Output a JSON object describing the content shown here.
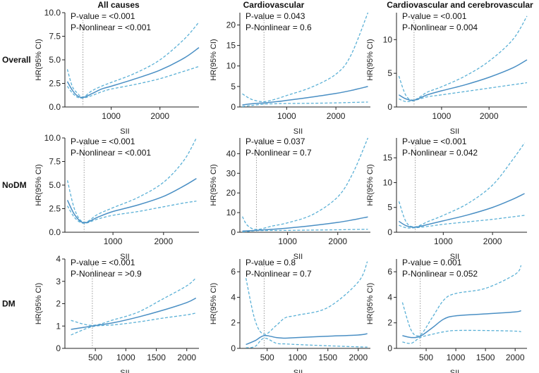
{
  "figure": {
    "column_titles": [
      "All causes",
      "Cardiovascular",
      "Cardiovascular and cerebrovascular"
    ],
    "row_labels": [
      "Overall",
      "NoDM",
      "DM"
    ],
    "colors": {
      "line": "#4a8fc4",
      "ci": "#5ab0d6",
      "ref": "#9a9a9a",
      "axis": "#222222"
    }
  },
  "chart_data": [
    {
      "type": "line",
      "row": "Overall",
      "column": "All causes",
      "xlabel": "SII",
      "ylabel": "HR(95% CI)",
      "xlim": [
        50,
        2800
      ],
      "ylim": [
        0,
        10
      ],
      "xticks": [
        1000,
        2000
      ],
      "yticks": [
        0.0,
        2.5,
        5.0,
        7.5,
        10.0
      ],
      "ytick_labels": [
        "0.0",
        "2.5",
        "5.0",
        "7.5",
        "10.0"
      ],
      "ref_x": 420,
      "annotations": [
        "P-value = <0.001",
        "P-Nonlinear = <0.001"
      ],
      "x": [
        100,
        200,
        300,
        420,
        600,
        800,
        1000,
        1500,
        2000,
        2500,
        2800
      ],
      "hr": [
        2.7,
        1.8,
        1.2,
        1.0,
        1.4,
        1.9,
        2.2,
        3.0,
        3.9,
        5.2,
        6.3
      ],
      "lower": [
        2.2,
        1.5,
        1.05,
        0.95,
        1.2,
        1.6,
        1.9,
        2.4,
        3.0,
        3.8,
        4.3
      ],
      "upper": [
        4.0,
        2.2,
        1.5,
        1.05,
        1.7,
        2.2,
        2.6,
        3.6,
        5.0,
        7.2,
        9.0
      ]
    },
    {
      "type": "line",
      "row": "Overall",
      "column": "Cardiovascular",
      "xlabel": "SII",
      "ylabel": "HR(95% CI)",
      "xlim": [
        50,
        2700
      ],
      "ylim": [
        0,
        23
      ],
      "xticks": [
        1000,
        2000
      ],
      "yticks": [
        0,
        5,
        10,
        15,
        20
      ],
      "ytick_labels": [
        "0",
        "5",
        "10",
        "15",
        "20"
      ],
      "ref_x": 540,
      "annotations": [
        "P-value = 0.043",
        "P-Nonlinear = 0.6"
      ],
      "x": [
        100,
        300,
        540,
        800,
        1000,
        1500,
        2000,
        2300,
        2650
      ],
      "hr": [
        0.5,
        0.8,
        1.0,
        1.3,
        1.6,
        2.4,
        3.3,
        4.0,
        5.0
      ],
      "lower": [
        0.1,
        0.4,
        0.7,
        0.8,
        0.85,
        0.9,
        1.0,
        1.1,
        1.2
      ],
      "upper": [
        3.2,
        1.8,
        1.3,
        2.0,
        2.8,
        4.8,
        8.0,
        12.5,
        23.0
      ]
    },
    {
      "type": "line",
      "row": "Overall",
      "column": "Cardiovascular and cerebrovascular",
      "xlabel": "SII",
      "ylabel": "HR(95% CI)",
      "xlim": [
        50,
        2800
      ],
      "ylim": [
        0,
        14
      ],
      "xticks": [
        1000,
        2000
      ],
      "yticks": [
        0,
        5,
        10
      ],
      "ytick_labels": [
        "0",
        "5",
        "10"
      ],
      "ref_x": 420,
      "annotations": [
        "P-value = <0.001",
        "P-Nonlinear = 0.004"
      ],
      "x": [
        100,
        250,
        420,
        700,
        1000,
        1500,
        2000,
        2500,
        2800
      ],
      "hr": [
        1.8,
        1.2,
        1.0,
        1.8,
        2.4,
        3.3,
        4.4,
        5.8,
        7.0
      ],
      "lower": [
        1.2,
        0.8,
        0.95,
        1.5,
        1.8,
        2.3,
        2.8,
        3.3,
        3.6
      ],
      "upper": [
        4.6,
        1.7,
        1.05,
        2.2,
        3.0,
        4.6,
        6.8,
        10.0,
        13.5
      ]
    },
    {
      "type": "line",
      "row": "NoDM",
      "column": "All causes",
      "xlabel": "SII",
      "ylabel": "HR(95% CI)",
      "xlim": [
        50,
        2700
      ],
      "ylim": [
        0,
        10
      ],
      "xticks": [
        1000,
        2000
      ],
      "yticks": [
        0.0,
        2.5,
        5.0,
        7.5,
        10.0
      ],
      "ytick_labels": [
        "0.0",
        "2.5",
        "5.0",
        "7.5",
        "10.0"
      ],
      "ref_x": 430,
      "annotations": [
        "P-value = <0.001",
        "P-Nonlinear = <0.001"
      ],
      "x": [
        100,
        250,
        430,
        700,
        1000,
        1500,
        2000,
        2400,
        2650
      ],
      "hr": [
        3.4,
        1.8,
        1.0,
        1.6,
        2.2,
        2.9,
        3.8,
        4.9,
        5.7
      ],
      "lower": [
        2.8,
        1.5,
        0.95,
        1.4,
        1.8,
        2.2,
        2.7,
        3.1,
        3.3
      ],
      "upper": [
        5.5,
        2.3,
        1.05,
        1.9,
        2.6,
        3.7,
        5.3,
        7.6,
        10.0
      ]
    },
    {
      "type": "line",
      "row": "NoDM",
      "column": "Cardiovascular",
      "xlabel": "SII",
      "ylabel": "HR(95% CI)",
      "xlim": [
        50,
        2650
      ],
      "ylim": [
        0,
        48
      ],
      "xticks": [
        1000,
        2000
      ],
      "yticks": [
        0,
        10,
        20,
        30,
        40
      ],
      "ytick_labels": [
        "0",
        "10",
        "20",
        "30",
        "40"
      ],
      "ref_x": 380,
      "annotations": [
        "P-value = 0.037",
        "P-Nonlinear = 0.7"
      ],
      "x": [
        100,
        200,
        380,
        700,
        1000,
        1500,
        2000,
        2300,
        2600
      ],
      "hr": [
        0.6,
        0.7,
        1.0,
        1.5,
        2.1,
        3.4,
        5.0,
        6.3,
        7.8
      ],
      "lower": [
        0.2,
        0.35,
        0.8,
        0.9,
        0.95,
        1.1,
        1.25,
        1.4,
        1.5
      ],
      "upper": [
        8.0,
        3.5,
        1.4,
        3.2,
        4.8,
        9.0,
        18.0,
        30.0,
        48.0
      ]
    },
    {
      "type": "line",
      "row": "NoDM",
      "column": "Cardiovascular and cerebrovascular",
      "xlabel": "SII",
      "ylabel": "HR(95% CI)",
      "xlim": [
        50,
        2700
      ],
      "ylim": [
        0,
        19
      ],
      "xticks": [
        1000,
        2000
      ],
      "yticks": [
        0,
        5,
        10,
        15
      ],
      "ytick_labels": [
        "0",
        "5",
        "10",
        "15"
      ],
      "ref_x": 430,
      "annotations": [
        "P-value = <0.001",
        "P-Nonlinear = 0.042"
      ],
      "x": [
        100,
        250,
        430,
        700,
        1000,
        1500,
        2000,
        2400,
        2650
      ],
      "hr": [
        2.2,
        1.3,
        1.0,
        1.6,
        2.3,
        3.5,
        5.0,
        6.6,
        7.8
      ],
      "lower": [
        1.4,
        0.9,
        0.9,
        1.2,
        1.6,
        2.1,
        2.6,
        3.1,
        3.4
      ],
      "upper": [
        6.2,
        2.0,
        1.1,
        2.2,
        3.4,
        5.8,
        9.5,
        14.5,
        18.0
      ]
    },
    {
      "type": "line",
      "row": "DM",
      "column": "All causes",
      "xlabel": "SII",
      "ylabel": "HR(95% CI)",
      "xlim": [
        0,
        2200
      ],
      "ylim": [
        0,
        4
      ],
      "xticks": [
        500,
        1000,
        1500,
        2000
      ],
      "yticks": [
        0,
        1,
        2,
        3,
        4
      ],
      "ytick_labels": [
        "0",
        "1",
        "2",
        "3",
        "4"
      ],
      "ref_x": 450,
      "annotations": [
        "P-value = <0.001",
        "P-Nonlinear = >0.9"
      ],
      "x": [
        100,
        450,
        800,
        1200,
        1600,
        2000,
        2150
      ],
      "hr": [
        0.85,
        1.0,
        1.15,
        1.4,
        1.7,
        2.05,
        2.25
      ],
      "lower": [
        0.6,
        0.97,
        1.05,
        1.18,
        1.35,
        1.5,
        1.58
      ],
      "upper": [
        1.25,
        1.03,
        1.28,
        1.62,
        2.2,
        2.8,
        3.15
      ]
    },
    {
      "type": "line",
      "row": "DM",
      "column": "Cardiovascular",
      "xlabel": "SII",
      "ylabel": "HR(95% CI)",
      "xlim": [
        50,
        2200
      ],
      "ylim": [
        0,
        7
      ],
      "xticks": [
        500,
        1000,
        1500,
        2000
      ],
      "yticks": [
        0,
        2,
        4,
        6
      ],
      "ytick_labels": [
        "0",
        "2",
        "4",
        "6"
      ],
      "ref_x": 450,
      "annotations": [
        "P-value = 0.8",
        "P-Nonlinear = 0.7"
      ],
      "x": [
        150,
        300,
        450,
        650,
        800,
        1000,
        1500,
        2000,
        2150
      ],
      "hr": [
        0.3,
        0.6,
        1.0,
        0.85,
        0.8,
        0.85,
        0.95,
        1.05,
        1.15
      ],
      "lower": [
        0.05,
        0.15,
        0.8,
        0.4,
        0.35,
        0.3,
        0.2,
        0.12,
        0.1
      ],
      "upper": [
        5.5,
        2.2,
        1.1,
        1.8,
        2.4,
        2.6,
        3.2,
        5.2,
        6.8
      ]
    },
    {
      "type": "line",
      "row": "DM",
      "column": "Cardiovascular and cerebrovascular",
      "xlabel": "SII",
      "ylabel": "HR(95% CI)",
      "xlim": [
        0,
        2200
      ],
      "ylim": [
        0,
        7
      ],
      "xticks": [
        500,
        1000,
        1500,
        2000
      ],
      "yticks": [
        0,
        2,
        4,
        6
      ],
      "ytick_labels": [
        "0",
        "2",
        "4",
        "6"
      ],
      "ref_x": 400,
      "annotations": [
        "P-value = 0.001",
        "P-Nonlinear = 0.052"
      ],
      "x": [
        100,
        250,
        400,
        600,
        800,
        1000,
        1500,
        2000,
        2100
      ],
      "hr": [
        1.0,
        0.85,
        0.95,
        1.6,
        2.3,
        2.55,
        2.7,
        2.85,
        2.95
      ],
      "lower": [
        0.5,
        0.4,
        0.85,
        1.1,
        1.3,
        1.4,
        1.4,
        1.35,
        1.3
      ],
      "upper": [
        3.6,
        1.4,
        1.05,
        2.4,
        3.8,
        4.3,
        4.7,
        5.8,
        6.5
      ]
    }
  ]
}
